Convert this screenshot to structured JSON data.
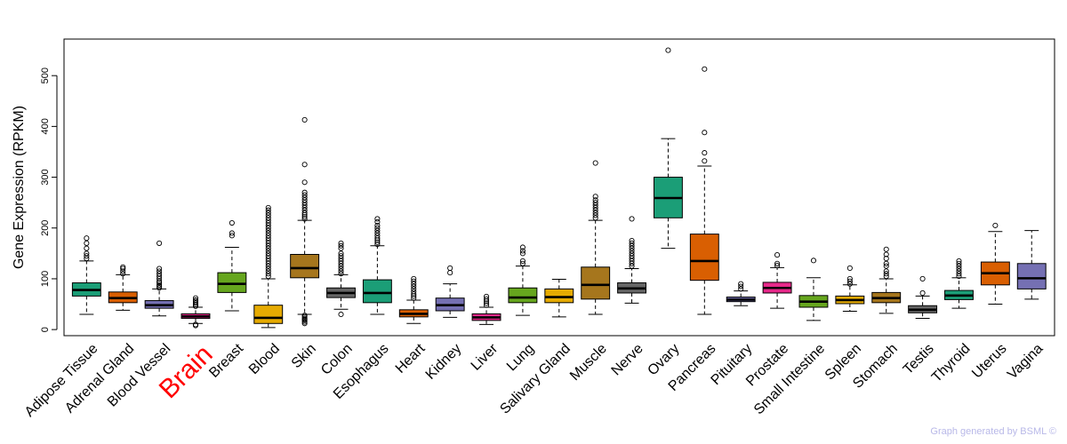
{
  "chart_data": {
    "type": "boxplot",
    "title": "",
    "xlabel": "",
    "ylabel": "Gene Expression (RPKM)",
    "ylim": [
      -12,
      572
    ],
    "yticks": [
      0,
      100,
      200,
      300,
      400,
      500
    ],
    "highlight": "Brain",
    "highlight_color": "#ff0000",
    "series": [
      {
        "name": "Adipose Tissue",
        "color": "#1b9e77",
        "whisker_low": 30,
        "q1": 66,
        "median": 78,
        "q3": 92,
        "whisker_high": 135,
        "outliers": [
          140,
          145,
          150,
          160,
          170,
          180
        ]
      },
      {
        "name": "Adrenal Gland",
        "color": "#d95f02",
        "whisker_low": 38,
        "q1": 53,
        "median": 62,
        "q3": 74,
        "whisker_high": 108,
        "outliers": [
          110,
          115,
          120,
          123
        ]
      },
      {
        "name": "Blood Vessel",
        "color": "#7570b3",
        "whisker_low": 27,
        "q1": 42,
        "median": 48,
        "q3": 57,
        "whisker_high": 80,
        "outliers": [
          82,
          85,
          88,
          92,
          95,
          100,
          105,
          110,
          115,
          120,
          170
        ]
      },
      {
        "name": "Brain",
        "color": "#e7298a",
        "whisker_low": 12,
        "q1": 22,
        "median": 26,
        "q3": 31,
        "whisker_high": 44,
        "outliers": [
          8,
          10,
          46,
          49,
          52,
          55,
          58,
          62
        ]
      },
      {
        "name": "Breast",
        "color": "#66a61e",
        "whisker_low": 37,
        "q1": 73,
        "median": 90,
        "q3": 112,
        "whisker_high": 162,
        "outliers": [
          185,
          190,
          210
        ]
      },
      {
        "name": "Blood",
        "color": "#e6ab02",
        "whisker_low": 4,
        "q1": 12,
        "median": 23,
        "q3": 48,
        "whisker_high": 100,
        "outliers": [
          105,
          110,
          115,
          120,
          125,
          130,
          135,
          140,
          145,
          150,
          155,
          160,
          165,
          170,
          175,
          180,
          185,
          190,
          195,
          200,
          205,
          210,
          215,
          220,
          225,
          230,
          235,
          240
        ]
      },
      {
        "name": "Skin",
        "color": "#a6761d",
        "whisker_low": 30,
        "q1": 102,
        "median": 121,
        "q3": 148,
        "whisker_high": 215,
        "outliers": [
          12,
          15,
          18,
          20,
          22,
          25,
          28,
          218,
          222,
          226,
          230,
          235,
          240,
          245,
          250,
          255,
          260,
          265,
          270,
          290,
          325,
          413
        ]
      },
      {
        "name": "Colon",
        "color": "#666666",
        "whisker_low": 40,
        "q1": 63,
        "median": 72,
        "q3": 82,
        "whisker_high": 108,
        "outliers": [
          30,
          110,
          115,
          120,
          125,
          130,
          135,
          140,
          145,
          150,
          160,
          165,
          170
        ]
      },
      {
        "name": "Esophagus",
        "color": "#1b9e77",
        "whisker_low": 30,
        "q1": 53,
        "median": 72,
        "q3": 98,
        "whisker_high": 165,
        "outliers": [
          168,
          172,
          176,
          180,
          185,
          190,
          195,
          200,
          205,
          212,
          218
        ]
      },
      {
        "name": "Heart",
        "color": "#d95f02",
        "whisker_low": 12,
        "q1": 25,
        "median": 31,
        "q3": 39,
        "whisker_high": 58,
        "outliers": [
          62,
          66,
          70,
          75,
          80,
          85,
          90,
          95,
          100
        ]
      },
      {
        "name": "Kidney",
        "color": "#7570b3",
        "whisker_low": 24,
        "q1": 37,
        "median": 48,
        "q3": 62,
        "whisker_high": 90,
        "outliers": [
          112,
          121
        ]
      },
      {
        "name": "Liver",
        "color": "#e7298a",
        "whisker_low": 10,
        "q1": 18,
        "median": 24,
        "q3": 31,
        "whisker_high": 44,
        "outliers": [
          48,
          52,
          56,
          60,
          65
        ]
      },
      {
        "name": "Lung",
        "color": "#66a61e",
        "whisker_low": 28,
        "q1": 53,
        "median": 63,
        "q3": 82,
        "whisker_high": 125,
        "outliers": [
          130,
          135,
          150,
          155,
          162
        ]
      },
      {
        "name": "Salivary Gland",
        "color": "#e6ab02",
        "whisker_low": 25,
        "q1": 53,
        "median": 64,
        "q3": 80,
        "whisker_high": 99,
        "outliers": []
      },
      {
        "name": "Muscle",
        "color": "#a6761d",
        "whisker_low": 30,
        "q1": 60,
        "median": 88,
        "q3": 123,
        "whisker_high": 215,
        "outliers": [
          220,
          225,
          230,
          235,
          240,
          245,
          250,
          255,
          262,
          328
        ]
      },
      {
        "name": "Nerve",
        "color": "#666666",
        "whisker_low": 52,
        "q1": 72,
        "median": 81,
        "q3": 92,
        "whisker_high": 120,
        "outliers": [
          125,
          130,
          135,
          140,
          145,
          150,
          155,
          160,
          165,
          170,
          175,
          218
        ]
      },
      {
        "name": "Ovary",
        "color": "#1b9e77",
        "whisker_low": 160,
        "q1": 220,
        "median": 259,
        "q3": 300,
        "whisker_high": 376,
        "outliers": [
          550
        ]
      },
      {
        "name": "Pancreas",
        "color": "#d95f02",
        "whisker_low": 30,
        "q1": 97,
        "median": 135,
        "q3": 188,
        "whisker_high": 322,
        "outliers": [
          332,
          348,
          388,
          513
        ]
      },
      {
        "name": "Pituitary",
        "color": "#7570b3",
        "whisker_low": 47,
        "q1": 55,
        "median": 59,
        "q3": 64,
        "whisker_high": 76,
        "outliers": [
          80,
          85,
          90
        ]
      },
      {
        "name": "Prostate",
        "color": "#e7298a",
        "whisker_low": 42,
        "q1": 72,
        "median": 82,
        "q3": 93,
        "whisker_high": 122,
        "outliers": [
          126,
          130,
          147
        ]
      },
      {
        "name": "Small Intestine",
        "color": "#66a61e",
        "whisker_low": 18,
        "q1": 44,
        "median": 55,
        "q3": 67,
        "whisker_high": 102,
        "outliers": [
          136
        ]
      },
      {
        "name": "Spleen",
        "color": "#e6ab02",
        "whisker_low": 36,
        "q1": 51,
        "median": 58,
        "q3": 66,
        "whisker_high": 88,
        "outliers": [
          90,
          95,
          100,
          121
        ]
      },
      {
        "name": "Stomach",
        "color": "#a6761d",
        "whisker_low": 32,
        "q1": 53,
        "median": 62,
        "q3": 73,
        "whisker_high": 100,
        "outliers": [
          105,
          110,
          115,
          125,
          130,
          140,
          148,
          158
        ]
      },
      {
        "name": "Testis",
        "color": "#666666",
        "whisker_low": 22,
        "q1": 33,
        "median": 39,
        "q3": 47,
        "whisker_high": 66,
        "outliers": [
          72,
          100
        ]
      },
      {
        "name": "Thyroid",
        "color": "#1b9e77",
        "whisker_low": 42,
        "q1": 59,
        "median": 67,
        "q3": 77,
        "whisker_high": 102,
        "outliers": [
          105,
          110,
          115,
          120,
          125,
          130,
          135
        ]
      },
      {
        "name": "Uterus",
        "color": "#d95f02",
        "whisker_low": 50,
        "q1": 88,
        "median": 111,
        "q3": 133,
        "whisker_high": 193,
        "outliers": [
          205
        ]
      },
      {
        "name": "Vagina",
        "color": "#7570b3",
        "whisker_low": 60,
        "q1": 80,
        "median": 101,
        "q3": 130,
        "whisker_high": 195,
        "outliers": []
      }
    ]
  },
  "footer": {
    "credit": "Graph generated by BSML ©"
  }
}
